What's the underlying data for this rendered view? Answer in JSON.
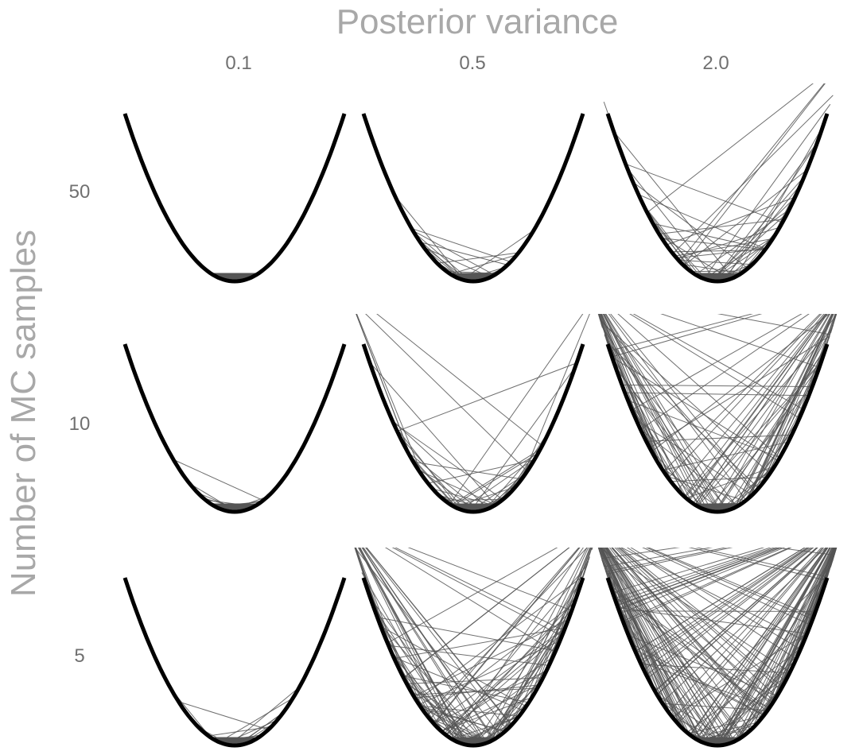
{
  "chart_data": {
    "type": "line",
    "column_title": "Posterior variance",
    "row_title": "Number of MC samples",
    "columns": [
      "0.1",
      "0.5",
      "2.0"
    ],
    "column_values": [
      0.1,
      0.5,
      2.0
    ],
    "rows": [
      "50",
      "10",
      "5"
    ],
    "row_values": [
      50,
      10,
      5
    ],
    "curve": "y = x^2",
    "x_range": [
      -1,
      1
    ],
    "y_range": [
      0,
      1
    ],
    "grid": false,
    "legend": "none",
    "line_color": "#555555",
    "curve_color": "#000000"
  }
}
